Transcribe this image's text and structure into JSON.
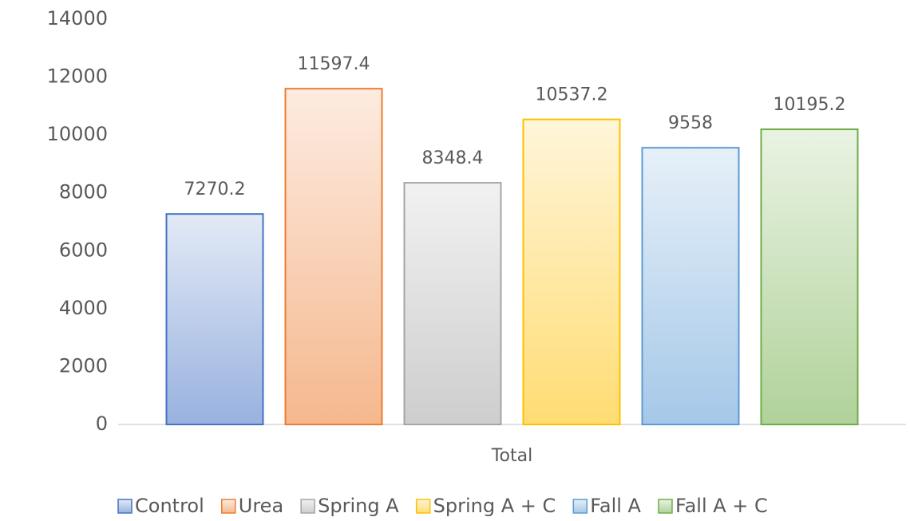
{
  "chart_data": {
    "type": "bar",
    "categories": [
      "Total"
    ],
    "series": [
      {
        "name": "Control",
        "color": "#4472c4",
        "values": [
          7270.2
        ]
      },
      {
        "name": "Urea",
        "color": "#ed7d31",
        "values": [
          11597.4
        ]
      },
      {
        "name": "Spring A",
        "color": "#a5a5a5",
        "values": [
          8348.4
        ]
      },
      {
        "name": "Spring A + C",
        "color": "#ffc000",
        "values": [
          10537.2
        ]
      },
      {
        "name": "Fall A",
        "color": "#5b9bd5",
        "values": [
          9558
        ]
      },
      {
        "name": "Fall A + C",
        "color": "#70ad47",
        "values": [
          10195.2
        ]
      }
    ],
    "ylim": [
      0,
      14000
    ],
    "yticks": [
      0,
      2000,
      4000,
      6000,
      8000,
      10000,
      12000,
      14000
    ],
    "grid": false,
    "data_labels": true,
    "legend": "bottom"
  }
}
